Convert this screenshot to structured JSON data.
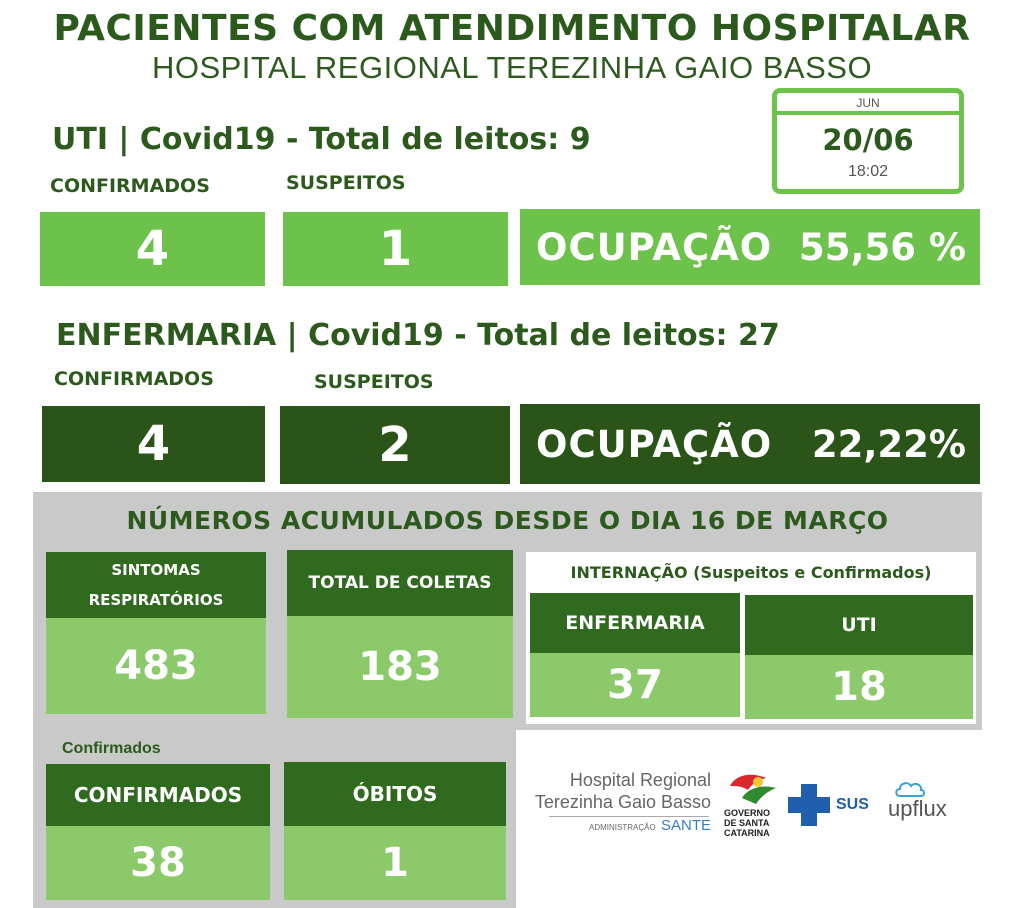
{
  "header": {
    "title": "PACIENTES COM ATENDIMENTO HOSPITALAR",
    "subtitle": "HOSPITAL REGIONAL TEREZINHA GAIO BASSO"
  },
  "date": {
    "month": "JUN",
    "day": "20/06",
    "time": "18:02"
  },
  "uti": {
    "title": "UTI | Covid19 - Total de leitos: 9",
    "confirmed_label": "CONFIRMADOS",
    "suspected_label": "SUSPEITOS",
    "confirmed": "4",
    "suspected": "1",
    "occupation_label": "OCUPAÇÃO",
    "occupation_value": "55,56 %"
  },
  "enfermaria": {
    "title": "ENFERMARIA | Covid19 - Total de leitos: 27",
    "confirmed_label": "CONFIRMADOS",
    "suspected_label": "SUSPEITOS",
    "confirmed": "4",
    "suspected": "2",
    "occupation_label": "OCUPAÇÃO",
    "occupation_value": "22,22%"
  },
  "accumulated": {
    "title": "NÚMEROS ACUMULADOS DESDE O DIA 16 DE MARÇO",
    "symptoms_label_1": "SINTOMAS",
    "symptoms_label_2": "RESPIRATÓRIOS",
    "symptoms_value": "483",
    "collections_label": "TOTAL DE COLETAS",
    "collections_value": "183",
    "internment_title": "INTERNAÇÃO (Suspeitos e Confirmados)",
    "internment_enf_label": "ENFERMARIA",
    "internment_enf_value": "37",
    "internment_uti_label": "UTI",
    "internment_uti_value": "18",
    "confirmed_section": "Confirmados",
    "confirmed_label": "CONFIRMADOS",
    "confirmed_value": "38",
    "deaths_label": "ÓBITOS",
    "deaths_value": "1"
  },
  "logos": {
    "hospital_line1": "Hospital Regional",
    "hospital_line2": "Terezinha Gaio Basso",
    "hospital_admin": "ADMINISTRAÇÃO",
    "hospital_sante": "SANTE",
    "gov_line1": "GOVERNO",
    "gov_line2": "DE SANTA",
    "gov_line3": "CATARINA",
    "sus": "SUS",
    "upflux": "upflux",
    "colors": {
      "dark_green": "#2a5418",
      "light_green": "#6cc24a",
      "card_body": "#8cc96a",
      "sus_blue": "#1f5fae",
      "gov_red": "#d8282d"
    }
  }
}
